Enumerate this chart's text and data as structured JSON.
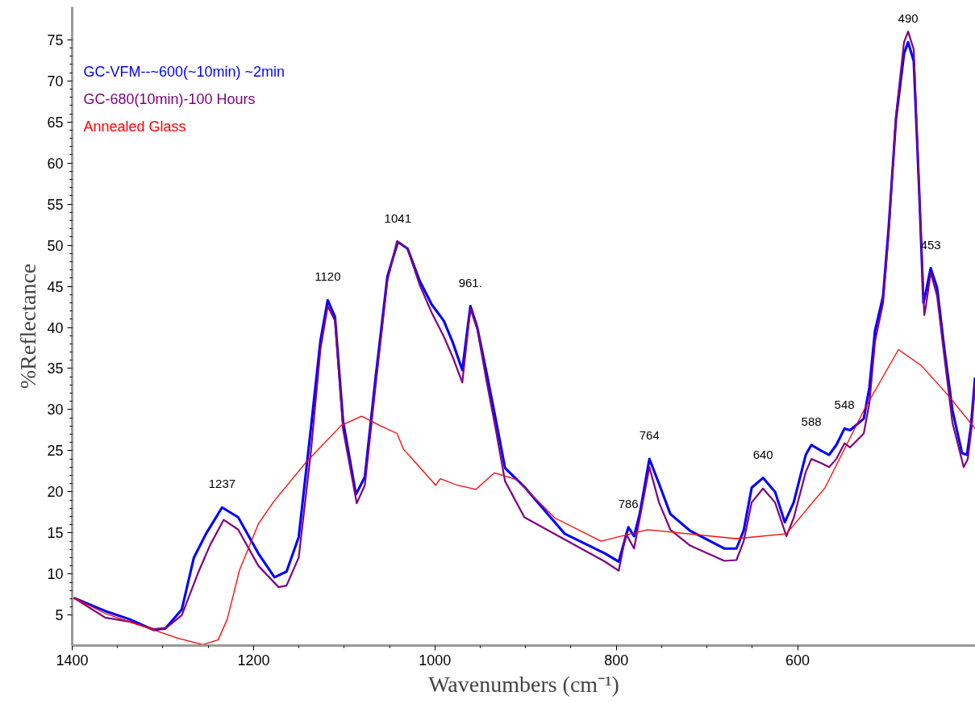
{
  "chart_data": {
    "type": "line",
    "xlabel": "Wavenumbers (cm⁻¹)",
    "ylabel": "%Reflectance",
    "xlim": [
      1400,
      404
    ],
    "ylim": [
      1.3,
      79
    ],
    "xticks": [
      1400,
      1200,
      1000,
      800,
      600
    ],
    "yticks": [
      5,
      10,
      15,
      20,
      25,
      30,
      35,
      40,
      45,
      50,
      55,
      60,
      65,
      70,
      75
    ],
    "grid": false,
    "legend": "top left",
    "marker": "none",
    "line_style": "solid",
    "series": [
      {
        "name": "GC-VFM--~600(~10min) ~2min",
        "color": "#0000ff",
        "x": [
          1398.2,
          1363.6,
          1336.9,
          1310.2,
          1296.9,
          1279.1,
          1265.8,
          1252.4,
          1234.7,
          1216.9,
          1194.7,
          1176.9,
          1163.6,
          1150.2,
          1136.9,
          1126.2,
          1118.2,
          1110.2,
          1101.3,
          1087.1,
          1077.3,
          1065.8,
          1052.4,
          1040.9,
          1030.2,
          1016.9,
          1003.6,
          990.2,
          980.4,
          969.8,
          960.9,
          953.3,
          943.1,
          932.9,
          922.7,
          901.3,
          856.9,
          812.4,
          797.3,
          786.7,
          780.4,
          774.2,
          763.5,
          752.9,
          740.4,
          719.1,
          680.9,
          667.5,
          659.5,
          650.7,
          638.2,
          624.9,
          614.2,
          604.4,
          591.1,
          584.9,
          574.2,
          565.3,
          557.3,
          548.4,
          542.2,
          527.1,
          520.9,
          514.7,
          505.8,
          499.6,
          491.6,
          482.7,
          478.2,
          472.0,
          465.8,
          461.3,
          459.6,
          453.3,
          446.2,
          438.2,
          429.3,
          418.7,
          413.3,
          408.9,
          404.4
        ],
        "values": [
          7.1,
          5.5,
          4.5,
          3.2,
          3.4,
          5.7,
          12.0,
          14.9,
          18.1,
          16.9,
          12.5,
          9.6,
          10.3,
          14.5,
          27.6,
          38.4,
          43.3,
          41.3,
          28.6,
          19.7,
          21.8,
          33.5,
          46.2,
          50.4,
          49.6,
          45.7,
          42.8,
          40.8,
          38.2,
          34.8,
          42.6,
          40.0,
          34.5,
          28.8,
          22.9,
          20.6,
          14.9,
          12.5,
          11.5,
          15.7,
          14.6,
          17.3,
          24.0,
          21.0,
          17.3,
          15.3,
          13.1,
          13.1,
          15.3,
          20.5,
          21.7,
          20.0,
          16.3,
          18.7,
          24.5,
          25.7,
          25.0,
          24.5,
          25.7,
          27.7,
          27.5,
          28.9,
          32.7,
          39.6,
          43.8,
          52.2,
          65.3,
          73.3,
          74.7,
          72.4,
          56.1,
          43.0,
          43.8,
          47.2,
          44.8,
          37.3,
          29.9,
          24.7,
          24.5,
          28.0,
          33.9
        ]
      },
      {
        "name": "GC-680(10min)-100 Hours",
        "color": "#800080",
        "x": [
          1398.2,
          1363.6,
          1336.9,
          1310.2,
          1296.9,
          1279.1,
          1261.3,
          1248.0,
          1232.9,
          1216.9,
          1194.7,
          1172.4,
          1163.6,
          1150.2,
          1136.9,
          1126.2,
          1118.2,
          1110.2,
          1101.3,
          1086.2,
          1077.3,
          1065.8,
          1052.4,
          1041.8,
          1030.2,
          1016.9,
          1003.6,
          990.2,
          980.4,
          969.8,
          960.9,
          953.3,
          943.1,
          932.9,
          922.7,
          901.3,
          856.9,
          812.4,
          797.3,
          789.3,
          780.4,
          763.5,
          752.9,
          740.4,
          719.1,
          680.9,
          667.5,
          659.5,
          650.7,
          638.2,
          624.9,
          612.4,
          604.4,
          591.1,
          584.9,
          574.2,
          565.3,
          557.3,
          548.4,
          542.2,
          527.1,
          520.9,
          514.7,
          505.8,
          499.6,
          491.6,
          482.7,
          478.2,
          472.0,
          465.8,
          460.4,
          458.7,
          453.3,
          446.2,
          438.2,
          429.3,
          416.9,
          412.4,
          408.0,
          404.4
        ],
        "values": [
          7.1,
          4.7,
          4.2,
          3.3,
          3.4,
          5.0,
          10.1,
          13.5,
          16.6,
          15.4,
          11.0,
          8.4,
          8.6,
          12.0,
          24.7,
          37.4,
          42.6,
          40.8,
          27.6,
          18.6,
          20.8,
          32.5,
          45.7,
          50.5,
          49.6,
          45.2,
          41.8,
          38.9,
          36.4,
          33.3,
          42.3,
          39.8,
          33.5,
          27.6,
          21.3,
          16.9,
          14.2,
          11.5,
          10.4,
          14.9,
          13.1,
          23.0,
          18.7,
          15.4,
          13.5,
          11.6,
          11.7,
          14.0,
          18.7,
          20.4,
          18.7,
          14.6,
          16.8,
          22.4,
          24.0,
          23.5,
          23.0,
          24.0,
          25.9,
          25.4,
          27.1,
          30.8,
          38.3,
          43.0,
          51.4,
          65.8,
          74.7,
          76.0,
          73.8,
          56.1,
          41.5,
          42.5,
          46.7,
          43.8,
          36.4,
          28.4,
          23.0,
          24.0,
          28.0,
          33.1
        ]
      },
      {
        "name": "Annealed Glass",
        "color": "#ff0000",
        "x": [
          1398.2,
          1363.6,
          1310.2,
          1283.6,
          1256.0,
          1239.0,
          1229.0,
          1215.4,
          1194.7,
          1177.8,
          1141.3,
          1103.1,
          1080.9,
          1061.3,
          1041.8,
          1034.7,
          999.1,
          994.1,
          975.4,
          954.7,
          934.6,
          910.2,
          867.5,
          816.9,
          765.3,
          667.5,
          612.4,
          569.8,
          527.1,
          488.9,
          464.0,
          433.8,
          404.4
        ],
        "values": [
          7.1,
          5.2,
          3.2,
          2.2,
          1.4,
          2.0,
          4.5,
          10.5,
          16.1,
          18.8,
          23.7,
          28.1,
          29.2,
          28.1,
          27.1,
          25.2,
          20.8,
          21.6,
          20.8,
          20.3,
          22.3,
          21.5,
          16.8,
          14.0,
          15.4,
          14.3,
          14.9,
          20.5,
          29.9,
          37.3,
          35.4,
          31.7,
          27.7
        ]
      }
    ],
    "annotations": [
      {
        "text": "1237",
        "x": 1234.7,
        "y": 18.1
      },
      {
        "text": "1120",
        "x": 1118.2,
        "y": 43.3
      },
      {
        "text": "1041",
        "x": 1040.9,
        "y": 50.4
      },
      {
        "text": "961.",
        "x": 960.9,
        "y": 42.6
      },
      {
        "text": "786",
        "x": 786.7,
        "y": 15.7
      },
      {
        "text": "764",
        "x": 763.5,
        "y": 24.0
      },
      {
        "text": "640",
        "x": 638.2,
        "y": 21.7
      },
      {
        "text": "588",
        "x": 584.9,
        "y": 25.7
      },
      {
        "text": "548",
        "x": 548.4,
        "y": 27.7
      },
      {
        "text": "490",
        "x": 478.2,
        "y": 74.7
      },
      {
        "text": "453",
        "x": 453.3,
        "y": 47.2
      }
    ]
  }
}
